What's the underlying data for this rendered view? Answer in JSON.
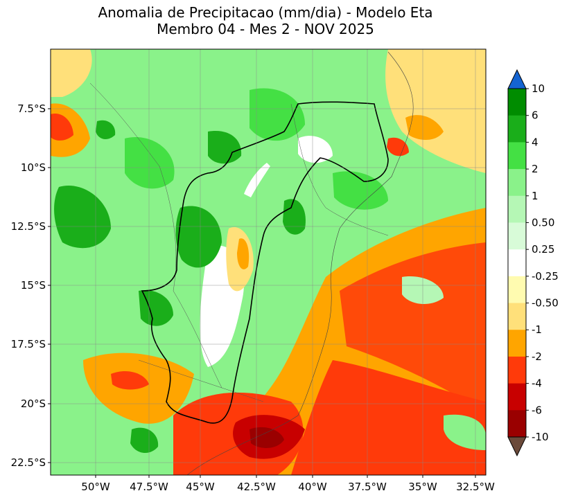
{
  "title": {
    "line1": "Anomalia de Precipitacao (mm/dia) - Modelo Eta",
    "line2": "Membro 04 - Mes 2 - NOV 2025"
  },
  "map": {
    "longitude_ticks": [
      "50°W",
      "47.5°W",
      "45°W",
      "42.5°W",
      "40°W",
      "37.5°W",
      "35°W",
      "32.5°W"
    ],
    "latitude_ticks": [
      "7.5°S",
      "10°S",
      "12.5°S",
      "15°S",
      "17.5°S",
      "20°S",
      "22.5°S"
    ],
    "grid": true
  },
  "colorbar": {
    "labels": [
      "10",
      "6",
      "4",
      "2",
      "1",
      "0.50",
      "0.25",
      "-0.25",
      "-0.50",
      "-1",
      "-2",
      "-4",
      "-6",
      "-10"
    ],
    "colors": [
      "#008c00",
      "#1aae1a",
      "#44e044",
      "#8af28a",
      "#b5f7b5",
      "#d8fbd8",
      "#ffffff",
      "#fffbb0",
      "#ffe07a",
      "#ffa500",
      "#ff3a0a",
      "#c80000",
      "#9a0000"
    ],
    "over_color": "#1464d2",
    "under_color": "#6b4a3a"
  }
}
